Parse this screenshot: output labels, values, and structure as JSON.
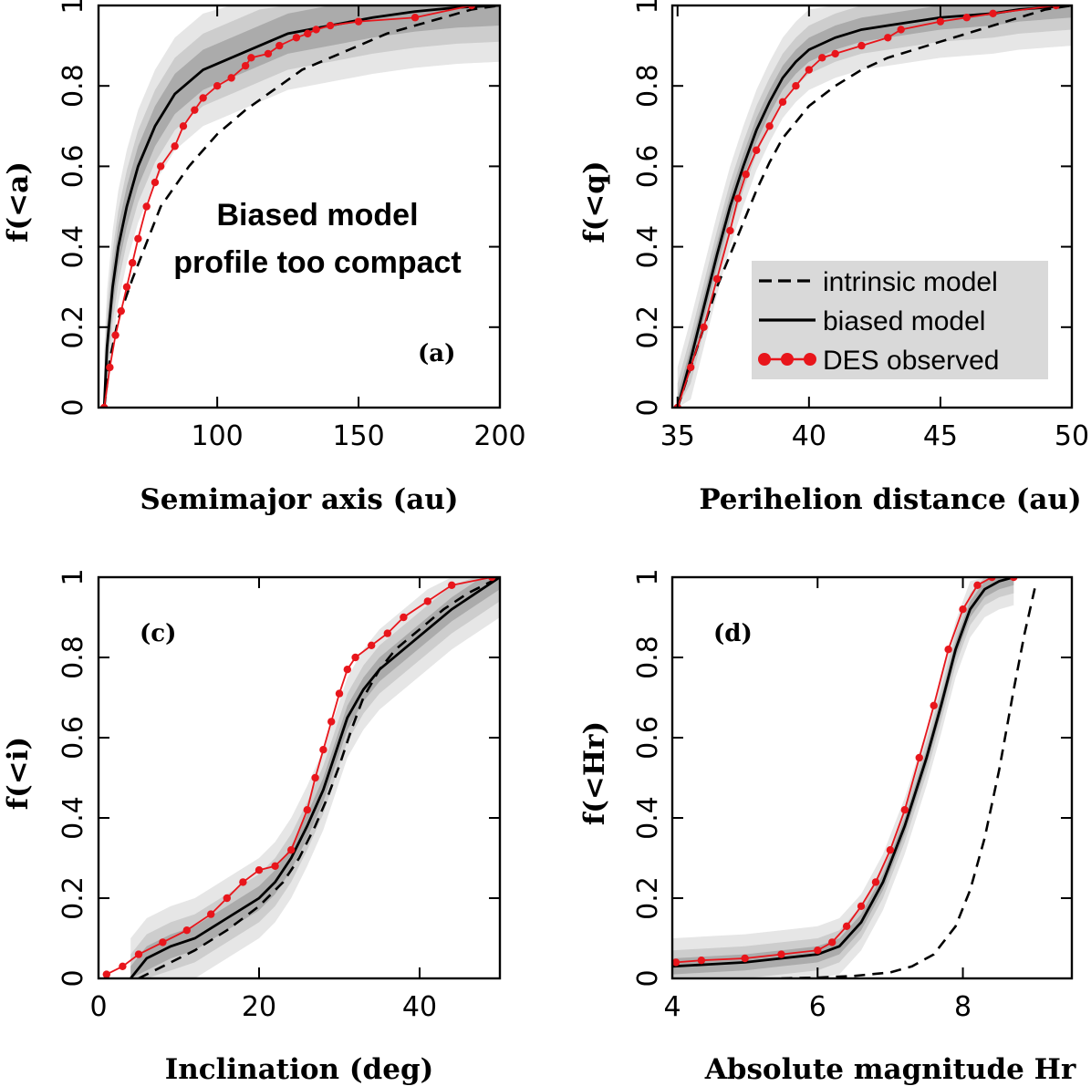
{
  "colors": {
    "observed": "#e8151b",
    "band_outer": "#e6e6e6",
    "band_mid": "#cdcdcd",
    "band_inner": "#ababab",
    "line": "#000000",
    "legend_box": "#d9d9d9"
  },
  "legend": {
    "items": [
      {
        "label": "intrinsic model",
        "style": "dashed"
      },
      {
        "label": "biased model",
        "style": "solid"
      },
      {
        "label": "DES observed",
        "style": "observed"
      }
    ]
  },
  "chart_data": [
    {
      "type": "line",
      "panel": "(a)",
      "xlabel": "Semimajor axis (au)",
      "ylabel": "f(<a)",
      "xlim": [
        58,
        200
      ],
      "ylim": [
        0,
        1
      ],
      "xticks": [
        100,
        150,
        200
      ],
      "yticks": [
        0,
        0.2,
        0.4,
        0.6,
        0.8,
        1
      ],
      "annotation": [
        "Biased model",
        "profile too compact"
      ],
      "series": [
        {
          "name": "intrinsic model",
          "style": "dashed",
          "x": [
            60,
            62,
            65,
            70,
            75,
            80,
            90,
            100,
            110,
            120,
            130,
            140,
            150,
            160,
            170,
            180,
            190,
            200
          ],
          "y": [
            0,
            0.12,
            0.22,
            0.32,
            0.41,
            0.5,
            0.6,
            0.68,
            0.74,
            0.79,
            0.84,
            0.87,
            0.9,
            0.93,
            0.95,
            0.97,
            0.99,
            1.0
          ]
        },
        {
          "name": "biased model",
          "style": "solid",
          "x": [
            60,
            61,
            63,
            65,
            68,
            72,
            78,
            85,
            95,
            105,
            115,
            125,
            140,
            155,
            170,
            185,
            200
          ],
          "y": [
            0,
            0.15,
            0.3,
            0.4,
            0.5,
            0.6,
            0.7,
            0.78,
            0.84,
            0.87,
            0.9,
            0.93,
            0.95,
            0.97,
            0.985,
            0.995,
            1.0
          ]
        },
        {
          "name": "DES observed",
          "style": "observed",
          "x": [
            60,
            62,
            64,
            66,
            68,
            70,
            72,
            75,
            78,
            80,
            85,
            88,
            92,
            95,
            100,
            105,
            110,
            112,
            118,
            122,
            128,
            132,
            135,
            140,
            150,
            170,
            190
          ],
          "y": [
            0,
            0.1,
            0.18,
            0.24,
            0.3,
            0.36,
            0.42,
            0.5,
            0.56,
            0.6,
            0.65,
            0.7,
            0.74,
            0.77,
            0.8,
            0.82,
            0.85,
            0.87,
            0.88,
            0.9,
            0.92,
            0.93,
            0.94,
            0.95,
            0.96,
            0.97,
            1.0
          ]
        }
      ],
      "band_half_width": [
        0.05,
        0.09,
        0.14
      ]
    },
    {
      "type": "line",
      "panel": "",
      "xlabel": "Perihelion distance (au)",
      "ylabel": "f(<q)",
      "xlim": [
        34.8,
        50
      ],
      "ylim": [
        0,
        1
      ],
      "xticks": [
        35,
        40,
        45,
        50
      ],
      "yticks": [
        0,
        0.2,
        0.4,
        0.6,
        0.8,
        1
      ],
      "show_legend": true,
      "series": [
        {
          "name": "intrinsic model",
          "style": "dashed",
          "x": [
            35,
            35.5,
            36,
            36.5,
            37,
            37.5,
            38,
            38.5,
            39,
            40,
            41,
            42,
            43,
            44,
            45,
            46,
            47,
            48,
            49,
            50
          ],
          "y": [
            0,
            0.1,
            0.2,
            0.3,
            0.38,
            0.46,
            0.54,
            0.61,
            0.67,
            0.75,
            0.8,
            0.84,
            0.87,
            0.89,
            0.91,
            0.93,
            0.95,
            0.97,
            0.99,
            1.0
          ]
        },
        {
          "name": "biased model",
          "style": "solid",
          "x": [
            35,
            35.5,
            36,
            36.5,
            37,
            37.5,
            38,
            38.5,
            39,
            39.5,
            40,
            41,
            42,
            43,
            44,
            45,
            46,
            47,
            48,
            49,
            50
          ],
          "y": [
            0,
            0.12,
            0.25,
            0.38,
            0.5,
            0.6,
            0.69,
            0.76,
            0.82,
            0.86,
            0.89,
            0.92,
            0.94,
            0.95,
            0.96,
            0.97,
            0.975,
            0.98,
            0.99,
            0.995,
            1.0
          ]
        },
        {
          "name": "DES observed",
          "style": "observed",
          "x": [
            35,
            35.5,
            36,
            36.5,
            37,
            37.3,
            37.6,
            38,
            38.5,
            39,
            39.5,
            40,
            40.5,
            41,
            42,
            43,
            43.5,
            45,
            46,
            47,
            49.4
          ],
          "y": [
            0,
            0.1,
            0.2,
            0.32,
            0.44,
            0.52,
            0.58,
            0.64,
            0.7,
            0.76,
            0.8,
            0.84,
            0.87,
            0.88,
            0.9,
            0.92,
            0.94,
            0.96,
            0.97,
            0.98,
            1.0
          ]
        }
      ],
      "band_half_width": [
        0.03,
        0.06,
        0.1
      ]
    },
    {
      "type": "line",
      "panel": "(c)",
      "xlabel": "Inclination (deg)",
      "ylabel": "f(<i)",
      "xlim": [
        0,
        50
      ],
      "ylim": [
        0,
        1
      ],
      "xticks": [
        0,
        20,
        40
      ],
      "yticks": [
        0,
        0.2,
        0.4,
        0.6,
        0.8,
        1
      ],
      "series": [
        {
          "name": "intrinsic model",
          "style": "dashed",
          "x": [
            5,
            8,
            12,
            16,
            20,
            23,
            25,
            27,
            28.5,
            30,
            31.5,
            33,
            35,
            37,
            40,
            43,
            46,
            48,
            50
          ],
          "y": [
            0,
            0.03,
            0.07,
            0.12,
            0.18,
            0.24,
            0.3,
            0.38,
            0.45,
            0.53,
            0.62,
            0.7,
            0.77,
            0.82,
            0.87,
            0.92,
            0.96,
            0.98,
            1.0
          ]
        },
        {
          "name": "biased model",
          "style": "solid",
          "x": [
            4,
            6,
            9,
            12,
            16,
            20,
            22,
            24,
            26,
            28,
            29.5,
            31,
            33,
            35,
            38,
            41,
            44,
            47,
            50
          ],
          "y": [
            0,
            0.05,
            0.08,
            0.1,
            0.15,
            0.2,
            0.24,
            0.3,
            0.38,
            0.47,
            0.56,
            0.65,
            0.72,
            0.77,
            0.82,
            0.87,
            0.92,
            0.96,
            1.0
          ]
        },
        {
          "name": "DES observed",
          "style": "observed",
          "x": [
            1,
            3,
            5,
            8,
            11,
            14,
            16,
            18,
            20,
            22,
            24,
            26,
            27,
            28,
            29,
            30,
            31,
            32,
            34,
            36,
            38,
            41,
            44,
            49
          ],
          "y": [
            0.01,
            0.03,
            0.06,
            0.09,
            0.12,
            0.16,
            0.2,
            0.24,
            0.27,
            0.28,
            0.32,
            0.42,
            0.5,
            0.57,
            0.64,
            0.71,
            0.77,
            0.8,
            0.83,
            0.86,
            0.9,
            0.94,
            0.98,
            1.0
          ]
        }
      ],
      "band_half_width": [
        0.03,
        0.06,
        0.1
      ]
    },
    {
      "type": "line",
      "panel": "(d)",
      "xlabel": "Absolute magnitude Hr",
      "ylabel": "f(<Hr)",
      "xlim": [
        4,
        9.5
      ],
      "ylim": [
        0,
        1
      ],
      "xticks": [
        4,
        6,
        8
      ],
      "yticks": [
        0,
        0.2,
        0.4,
        0.6,
        0.8,
        1
      ],
      "series": [
        {
          "name": "intrinsic model",
          "style": "dashed",
          "x": [
            5.5,
            6,
            6.5,
            7,
            7.3,
            7.6,
            7.9,
            8.1,
            8.3,
            8.5,
            8.7,
            8.85,
            9.0
          ],
          "y": [
            0,
            0.002,
            0.006,
            0.015,
            0.03,
            0.06,
            0.13,
            0.22,
            0.35,
            0.52,
            0.72,
            0.86,
            0.98
          ]
        },
        {
          "name": "biased model",
          "style": "solid",
          "x": [
            4,
            4.5,
            5,
            5.5,
            6,
            6.3,
            6.6,
            6.9,
            7.2,
            7.5,
            7.7,
            7.9,
            8.1,
            8.3,
            8.5,
            8.7
          ],
          "y": [
            0.03,
            0.035,
            0.04,
            0.05,
            0.06,
            0.08,
            0.14,
            0.24,
            0.38,
            0.55,
            0.68,
            0.82,
            0.92,
            0.97,
            0.99,
            1.0
          ]
        },
        {
          "name": "DES observed",
          "style": "observed",
          "x": [
            4.05,
            4.4,
            5.0,
            5.5,
            6.0,
            6.2,
            6.4,
            6.6,
            6.8,
            7.0,
            7.2,
            7.4,
            7.6,
            7.8,
            8.0,
            8.2,
            8.4,
            8.7
          ],
          "y": [
            0.04,
            0.045,
            0.05,
            0.06,
            0.07,
            0.09,
            0.13,
            0.18,
            0.24,
            0.32,
            0.42,
            0.55,
            0.68,
            0.82,
            0.92,
            0.98,
            1.0,
            1.0
          ]
        }
      ],
      "band_half_width": [
        0.02,
        0.04,
        0.07
      ]
    }
  ]
}
